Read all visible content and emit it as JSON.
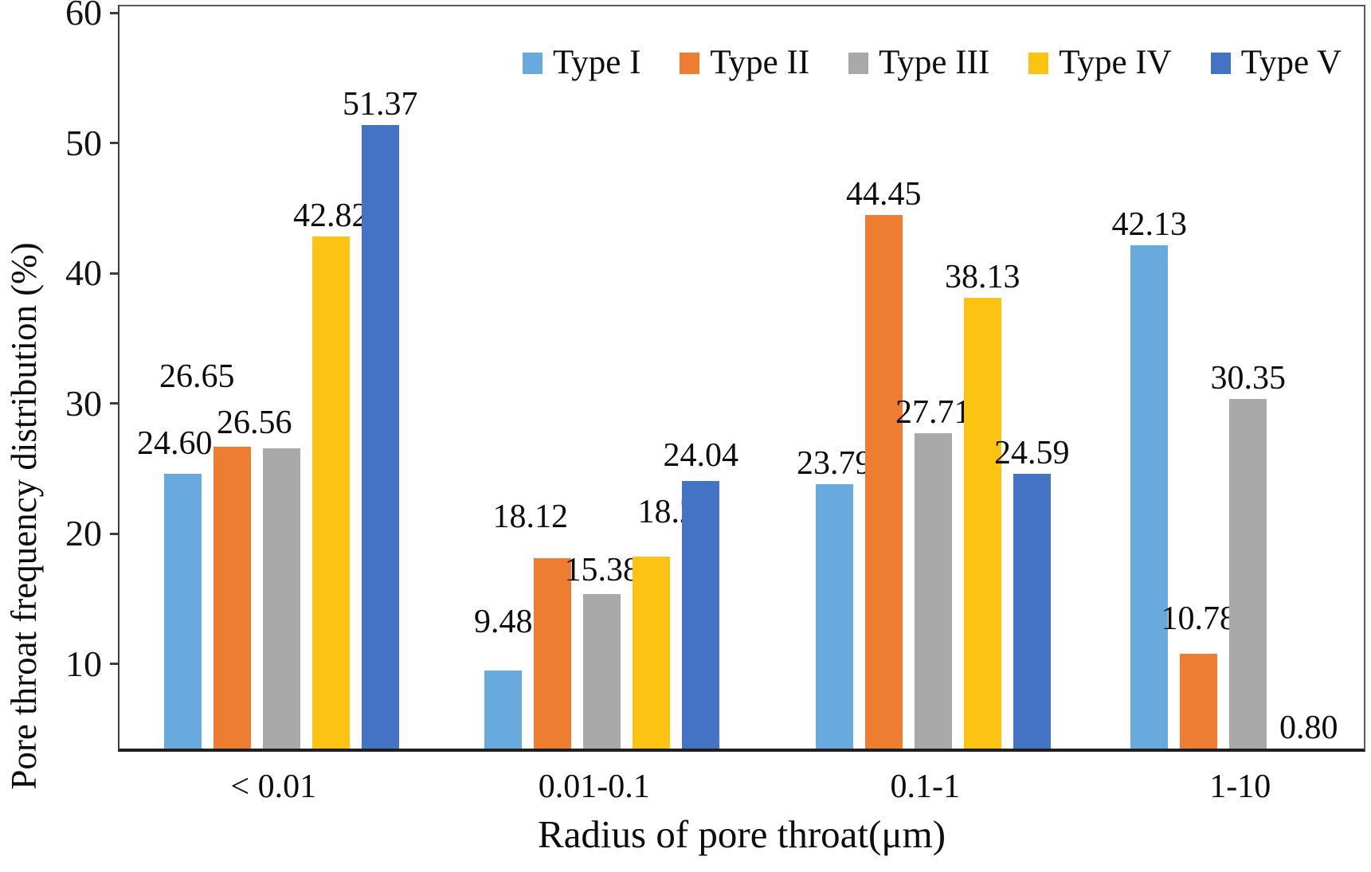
{
  "chart_data": {
    "type": "bar",
    "title": "",
    "xlabel": "Radius of pore throat(μm)",
    "ylabel": "Pore throat frequency distribution (%)",
    "categories": [
      "< 0.01",
      "0.01-0.1",
      "0.1-1",
      "1-10"
    ],
    "series": [
      {
        "name": "Type I",
        "color": "#68aadd",
        "values": [
          24.6,
          9.48,
          23.79,
          42.13
        ],
        "labels": [
          "24.60",
          "9.48",
          "23.79",
          "42.13"
        ]
      },
      {
        "name": "Type II",
        "color": "#ed7d31",
        "values": [
          26.65,
          18.12,
          44.45,
          10.78
        ],
        "labels": [
          "26.65",
          "18.12",
          "44.45",
          "10.78"
        ]
      },
      {
        "name": "Type III",
        "color": "#a9a9a9",
        "values": [
          26.56,
          15.38,
          27.71,
          30.35
        ],
        "labels": [
          "26.56",
          "15.38",
          "27.71",
          "30.35"
        ]
      },
      {
        "name": "Type IV",
        "color": "#fdc313",
        "values": [
          42.82,
          18.25,
          38.13,
          0.8
        ],
        "labels": [
          "42.82",
          "18.25",
          "38.13",
          "0.80"
        ]
      },
      {
        "name": "Type V",
        "color": "#4472c4",
        "values": [
          51.37,
          24.04,
          24.59,
          null
        ],
        "labels": [
          "51.37",
          "24.04",
          "24.59",
          ""
        ]
      }
    ],
    "yticks": [
      10,
      20,
      30,
      40,
      50,
      60
    ],
    "ylim": [
      3.5,
      60.5
    ],
    "grid": false,
    "legend_position": "top-center-inside"
  }
}
